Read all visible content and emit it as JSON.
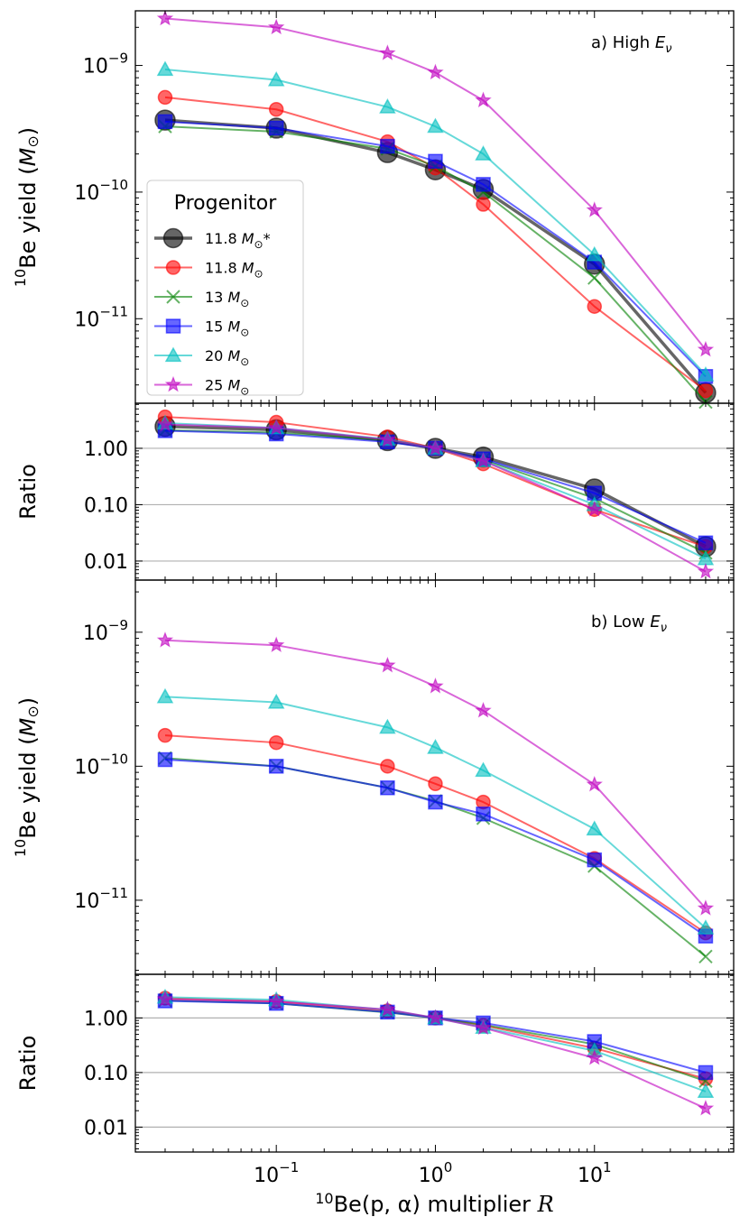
{
  "chart_data": {
    "type": "line",
    "x_label_parts": [
      "10",
      "Be(p, α) multiplier "
    ],
    "x_label_symbol": "R",
    "x": [
      0.02,
      0.1,
      0.5,
      1,
      2,
      10,
      50
    ],
    "x_scale": "log",
    "xlim": [
      0.013,
      75
    ],
    "x_ticks": [
      {
        "value": 0.1,
        "base": "10",
        "exp": "−1"
      },
      {
        "value": 1,
        "base": "10",
        "exp": "0"
      },
      {
        "value": 10,
        "base": "10",
        "exp": "1"
      }
    ],
    "series_styles": [
      {
        "color": "#000000",
        "marker": "o-big",
        "line_width": 3.5
      },
      {
        "color": "#ff0000",
        "marker": "o",
        "line_width": 2
      },
      {
        "color": "#008000",
        "marker": "x",
        "line_width": 2
      },
      {
        "color": "#0000ff",
        "marker": "s",
        "line_width": 2
      },
      {
        "color": "#00bfbf",
        "marker": "^",
        "line_width": 2
      },
      {
        "color": "#bf00bf",
        "marker": "*",
        "line_width": 2
      }
    ],
    "legend": {
      "title": "Progenitor",
      "location": "center-left of panel a",
      "entries": [
        {
          "mass": "11.8",
          "unit": "M",
          "sub": "⊙",
          "suffix": "*"
        },
        {
          "mass": "11.8",
          "unit": "M",
          "sub": "⊙",
          "suffix": ""
        },
        {
          "mass": "13",
          "unit": "M",
          "sub": "⊙",
          "suffix": ""
        },
        {
          "mass": "15",
          "unit": "M",
          "sub": "⊙",
          "suffix": ""
        },
        {
          "mass": "20",
          "unit": "M",
          "sub": "⊙",
          "suffix": ""
        },
        {
          "mass": "25",
          "unit": "M",
          "sub": "⊙",
          "suffix": ""
        }
      ]
    },
    "panels": [
      {
        "id": "a-yield",
        "label_prefix": "a) High ",
        "label_symbol": "E",
        "label_sub": "ν",
        "ylabel_parts": [
          "10",
          "Be yield (",
          "M",
          "⊙",
          ")"
        ],
        "y_scale": "log",
        "ylim": [
          2.15e-12,
          2.7e-09
        ],
        "y_ticks": [
          {
            "value": 1e-09,
            "base": "10",
            "exp": "−9"
          },
          {
            "value": 1e-10,
            "base": "10",
            "exp": "−10"
          },
          {
            "value": 1e-11,
            "base": "10",
            "exp": "−11"
          }
        ],
        "series": [
          {
            "values": [
              3.7e-10,
              3.2e-10,
              2.05e-10,
              1.5e-10,
              1.05e-10,
              2.7e-11,
              2.6e-12
            ]
          },
          {
            "values": [
              5.6e-10,
              4.5e-10,
              2.5e-10,
              1.55e-10,
              8e-11,
              1.25e-11,
              2.7e-12
            ]
          },
          {
            "values": [
              3.3e-10,
              3e-10,
              2.2e-10,
              1.6e-10,
              1e-10,
              2.1e-11,
              2.2e-12
            ]
          },
          {
            "values": [
              3.6e-10,
              3.2e-10,
              2.3e-10,
              1.75e-10,
              1.15e-10,
              2.8e-11,
              3.5e-12
            ]
          },
          {
            "values": [
              9.3e-10,
              7.7e-10,
              4.7e-10,
              3.3e-10,
              2e-10,
              3.2e-11,
              3.6e-12
            ]
          },
          {
            "values": [
              2.35e-09,
              2e-09,
              1.25e-09,
              8.8e-10,
              5.3e-10,
              7.2e-11,
              5.7e-12
            ]
          }
        ]
      },
      {
        "id": "a-ratio",
        "ylabel_parts": [
          "Ratio"
        ],
        "y_scale": "log",
        "ylim": [
          0.0046,
          6.3
        ],
        "y_ticks": [
          {
            "value": 1,
            "label": "1.00"
          },
          {
            "value": 0.1,
            "label": "0.10"
          },
          {
            "value": 0.01,
            "label": "0.01"
          }
        ],
        "grid_y": [
          1,
          0.1,
          0.01
        ],
        "series": [
          {
            "values": [
              2.45,
              2.13,
              1.37,
              1.0,
              0.7,
              0.19,
              0.018
            ]
          },
          {
            "values": [
              3.6,
              2.9,
              1.6,
              1.0,
              0.53,
              0.082,
              0.018
            ]
          },
          {
            "values": [
              2.1,
              1.9,
              1.38,
              1.0,
              0.63,
              0.13,
              0.014
            ]
          },
          {
            "values": [
              2.05,
              1.8,
              1.3,
              1.0,
              0.65,
              0.16,
              0.021
            ]
          },
          {
            "values": [
              2.8,
              2.3,
              1.45,
              1.0,
              0.6,
              0.1,
              0.011
            ]
          },
          {
            "values": [
              2.65,
              2.3,
              1.42,
              1.0,
              0.6,
              0.082,
              0.0065
            ]
          }
        ]
      },
      {
        "id": "b-yield",
        "label_prefix": "b) Low ",
        "label_symbol": "E",
        "label_sub": "ν",
        "ylabel_parts": [
          "10",
          "Be yield (",
          "M",
          "⊙",
          ")"
        ],
        "y_scale": "log",
        "ylim": [
          2.8e-12,
          2.45e-09
        ],
        "y_ticks": [
          {
            "value": 1e-09,
            "base": "10",
            "exp": "−9"
          },
          {
            "value": 1e-10,
            "base": "10",
            "exp": "−10"
          },
          {
            "value": 1e-11,
            "base": "10",
            "exp": "−11"
          }
        ],
        "series": [
          {
            "values": [
              null,
              null,
              null,
              null,
              null,
              null,
              null
            ]
          },
          {
            "values": [
              1.7e-10,
              1.5e-10,
              1e-10,
              7.4e-11,
              5.4e-11,
              2.05e-11,
              5.7e-12
            ]
          },
          {
            "values": [
              1.15e-10,
              1e-10,
              6.9e-11,
              5.5e-11,
              4.1e-11,
              1.8e-11,
              3.8e-12
            ]
          },
          {
            "values": [
              1.12e-10,
              1e-10,
              6.9e-11,
              5.4e-11,
              4.4e-11,
              2e-11,
              5.4e-12
            ]
          },
          {
            "values": [
              3.3e-10,
              3e-10,
              1.95e-10,
              1.38e-10,
              9.3e-11,
              3.4e-11,
              6.2e-12
            ]
          },
          {
            "values": [
              8.7e-10,
              8e-10,
              5.65e-10,
              3.95e-10,
              2.6e-10,
              7.3e-11,
              8.7e-12
            ]
          }
        ]
      },
      {
        "id": "b-ratio",
        "ylabel_parts": [
          "Ratio"
        ],
        "y_scale": "log",
        "ylim": [
          0.0035,
          6.3
        ],
        "y_ticks": [
          {
            "value": 1,
            "label": "1.00"
          },
          {
            "value": 0.1,
            "label": "0.10"
          },
          {
            "value": 0.01,
            "label": "0.01"
          }
        ],
        "grid_y": [
          1,
          0.1,
          0.01
        ],
        "series": [
          {
            "values": [
              null,
              null,
              null,
              null,
              null,
              null,
              null
            ]
          },
          {
            "values": [
              2.3,
              2.0,
              1.35,
              1.0,
              0.73,
              0.28,
              0.077
            ]
          },
          {
            "values": [
              2.1,
              1.85,
              1.26,
              1.0,
              0.75,
              0.33,
              0.07
            ]
          },
          {
            "values": [
              2.05,
              1.85,
              1.28,
              1.0,
              0.81,
              0.37,
              0.1
            ]
          },
          {
            "values": [
              2.4,
              2.15,
              1.4,
              1.0,
              0.67,
              0.25,
              0.045
            ]
          },
          {
            "values": [
              2.2,
              2.0,
              1.43,
              1.0,
              0.66,
              0.185,
              0.022
            ]
          }
        ]
      }
    ]
  }
}
